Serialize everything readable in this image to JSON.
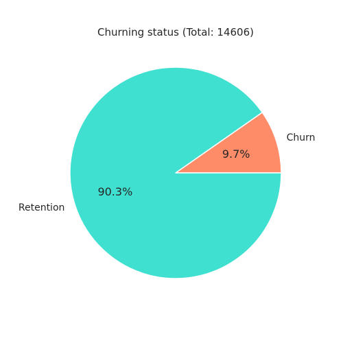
{
  "chart_data": {
    "type": "pie",
    "title": "Churning status (Total: 14606)",
    "slices": [
      {
        "label": "Churn",
        "value": 9.7,
        "percent_label": "9.7%",
        "color": "#ff8c69"
      },
      {
        "label": "Retention",
        "value": 90.3,
        "percent_label": "90.3%",
        "color": "#40e0d0"
      }
    ],
    "start_angle_deg": 0,
    "direction": "counterclockwise",
    "wedge_edge_color": "#ffffff"
  }
}
